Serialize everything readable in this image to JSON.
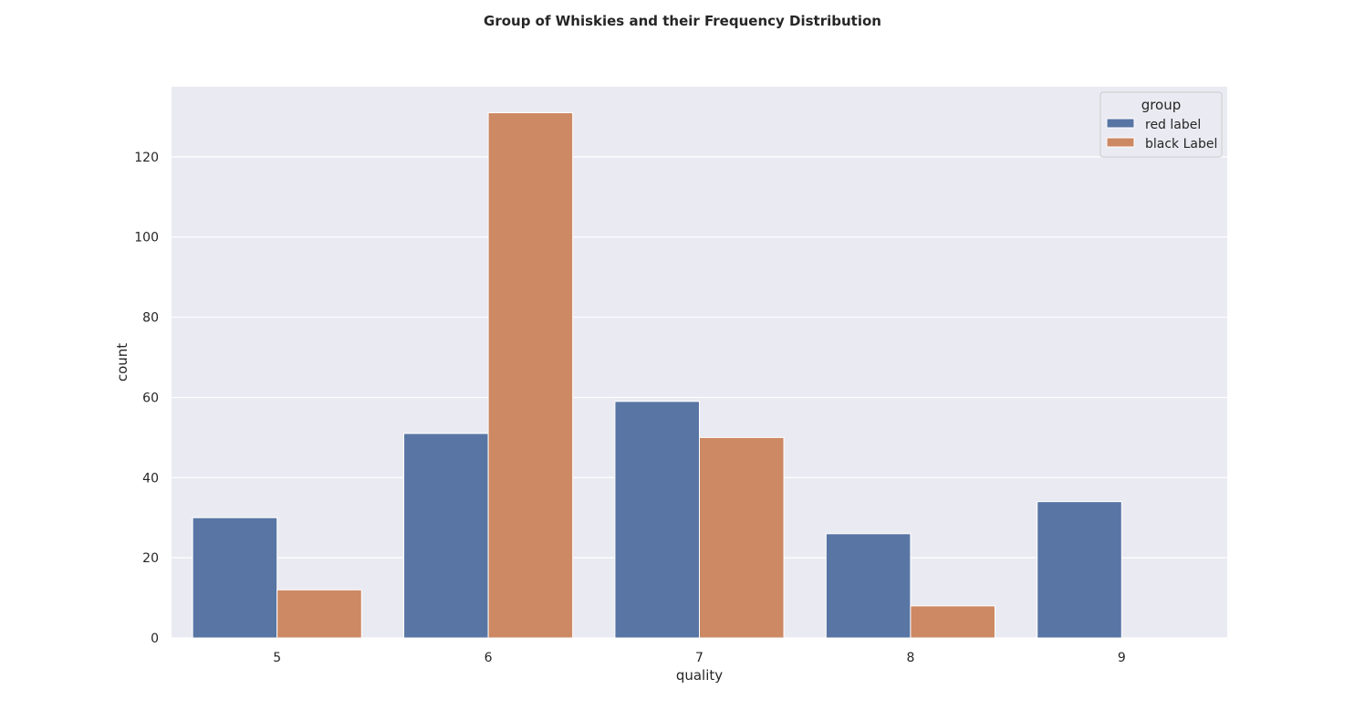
{
  "chart_data": {
    "type": "bar",
    "title": "Group of Whiskies and their Frequency Distribution",
    "xlabel": "quality",
    "ylabel": "count",
    "categories": [
      "5",
      "6",
      "7",
      "8",
      "9"
    ],
    "series": [
      {
        "name": "red label",
        "color": "#5875a4",
        "values": [
          30,
          51,
          59,
          26,
          34
        ]
      },
      {
        "name": "black Label",
        "color": "#cc8963",
        "values": [
          12,
          131,
          50,
          8,
          0
        ]
      }
    ],
    "ylim": [
      0,
      137.5
    ],
    "yticks": [
      "0",
      "20",
      "40",
      "60",
      "80",
      "100",
      "120"
    ],
    "grid": true,
    "legend": {
      "title": "group",
      "placement": "top-right"
    },
    "colors": {
      "plot_background": "#eaeaf2",
      "grid": "#ffffff"
    }
  }
}
